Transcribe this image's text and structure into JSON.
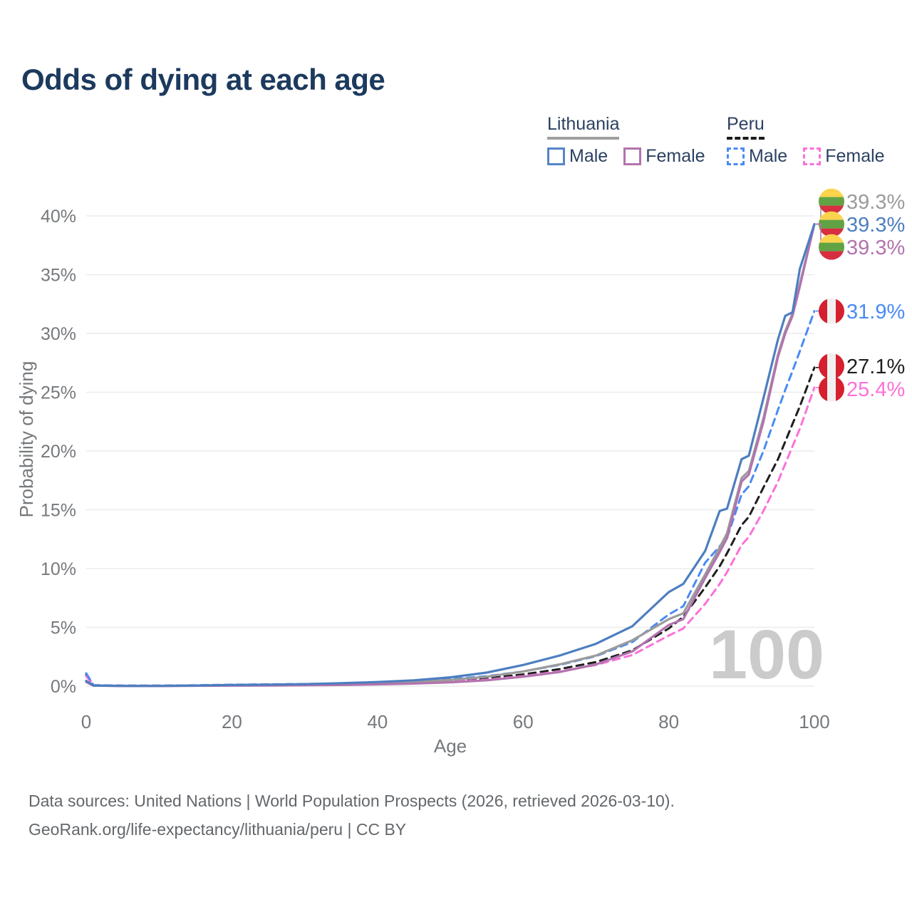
{
  "header": {
    "title": "Odds of dying at each age"
  },
  "legend": {
    "lithuania": {
      "label": "Lithuania",
      "underline_color": "#9e9e9e",
      "male": "Male",
      "female": "Female",
      "male_color": "#5585c7",
      "female_color": "#b273ae"
    },
    "peru": {
      "label": "Peru",
      "underline_color": "#1a1a1a",
      "male": "Male",
      "female": "Female",
      "male_color": "#4a8af4",
      "female_color": "#fb71d8"
    }
  },
  "chart_data": {
    "type": "line",
    "title": "Odds of dying at each age",
    "xlabel": "Age",
    "ylabel": "Probability of dying",
    "xlim": [
      0,
      100
    ],
    "ylim": [
      0,
      42
    ],
    "xticks": [
      0,
      20,
      40,
      60,
      80,
      100
    ],
    "xtick_labels": [
      "0",
      "20",
      "40",
      "60",
      "80",
      "100"
    ],
    "yticks": [
      0,
      5,
      10,
      15,
      20,
      25,
      30,
      35,
      40
    ],
    "ytick_labels": [
      "0%",
      "5%",
      "10%",
      "15%",
      "20%",
      "25%",
      "30%",
      "35%",
      "40%"
    ],
    "grid": "horizontal",
    "legend_position": "top-right",
    "watermark": "100",
    "flags": {
      "lithuania": [
        "#FCD34D",
        "#61A344",
        "#D62F3F"
      ],
      "peru": [
        "#D6202F",
        "#F0F0F0",
        "#D6202F"
      ]
    },
    "x": [
      0,
      1,
      5,
      10,
      15,
      20,
      25,
      30,
      35,
      40,
      45,
      50,
      55,
      60,
      65,
      70,
      75,
      80,
      82,
      85,
      87,
      88,
      90,
      91,
      93,
      95,
      96,
      97,
      98,
      100
    ],
    "series": [
      {
        "id": "lithuania-total",
        "name": "Lithuania",
        "sex": "both",
        "color": "#9b9b9b",
        "dash": "solid",
        "flag": "lithuania",
        "end_label": "39.3%",
        "label_color": "#9b9b9b",
        "values": [
          0.4,
          0.045,
          0.02,
          0.02,
          0.04,
          0.07,
          0.09,
          0.12,
          0.17,
          0.25,
          0.35,
          0.52,
          0.8,
          1.25,
          1.85,
          2.6,
          3.9,
          5.7,
          6.2,
          9.5,
          11.8,
          13.0,
          17.7,
          18.3,
          22.8,
          28.2,
          30.2,
          31.7,
          34.2,
          39.3
        ]
      },
      {
        "id": "lithuania-male",
        "name": "Lithuania male",
        "sex": "male",
        "color": "#4d7ec0",
        "dash": "solid",
        "flag": "lithuania",
        "end_label": "39.3%",
        "label_color": "#4d7ec0",
        "values": [
          0.45,
          0.05,
          0.02,
          0.02,
          0.05,
          0.1,
          0.13,
          0.17,
          0.25,
          0.35,
          0.5,
          0.75,
          1.15,
          1.8,
          2.6,
          3.6,
          5.1,
          8.0,
          8.7,
          11.5,
          14.9,
          15.1,
          19.3,
          19.6,
          24.5,
          29.5,
          31.5,
          31.8,
          35.5,
          39.3
        ]
      },
      {
        "id": "lithuania-female",
        "name": "Lithuania female",
        "sex": "female",
        "color": "#b273ae",
        "dash": "solid",
        "flag": "lithuania",
        "end_label": "39.3%",
        "label_color": "#b273ae",
        "values": [
          0.35,
          0.04,
          0.015,
          0.015,
          0.03,
          0.04,
          0.05,
          0.07,
          0.1,
          0.15,
          0.22,
          0.32,
          0.5,
          0.8,
          1.2,
          1.85,
          2.95,
          5.2,
          5.7,
          9.2,
          11.4,
          12.6,
          17.4,
          18.0,
          22.5,
          28.0,
          30.0,
          31.5,
          34.0,
          39.3
        ]
      },
      {
        "id": "peru-male",
        "name": "Peru male",
        "sex": "male",
        "color": "#4a8af4",
        "dash": "dashed",
        "flag": "peru",
        "end_label": "31.9%",
        "label_color": "#4a8af4",
        "values": [
          1.1,
          0.08,
          0.04,
          0.04,
          0.07,
          0.12,
          0.15,
          0.18,
          0.23,
          0.3,
          0.42,
          0.6,
          0.85,
          1.25,
          1.8,
          2.55,
          3.75,
          6.1,
          6.8,
          10.5,
          11.9,
          12.6,
          16.3,
          17.0,
          20.0,
          23.5,
          25.2,
          26.8,
          28.5,
          31.9
        ]
      },
      {
        "id": "peru-total",
        "name": "Peru",
        "sex": "both",
        "color": "#1f1f1f",
        "dash": "dashed",
        "flag": "peru",
        "end_label": "27.1%",
        "label_color": "#1f1f1f",
        "values": [
          0.95,
          0.07,
          0.035,
          0.035,
          0.06,
          0.1,
          0.12,
          0.14,
          0.18,
          0.24,
          0.33,
          0.47,
          0.67,
          1.0,
          1.45,
          2.05,
          3.05,
          4.9,
          5.9,
          8.4,
          10.2,
          11.3,
          13.7,
          14.4,
          16.9,
          19.3,
          20.8,
          22.3,
          23.8,
          27.1
        ]
      },
      {
        "id": "peru-female",
        "name": "Peru female",
        "sex": "female",
        "color": "#fb71d8",
        "dash": "dashed",
        "flag": "peru",
        "end_label": "25.4%",
        "label_color": "#fb71d8",
        "values": [
          0.85,
          0.06,
          0.03,
          0.03,
          0.05,
          0.07,
          0.09,
          0.11,
          0.14,
          0.19,
          0.27,
          0.38,
          0.55,
          0.85,
          1.25,
          1.8,
          2.65,
          4.3,
          4.9,
          7.0,
          8.7,
          9.7,
          12.0,
          12.7,
          14.9,
          17.4,
          18.9,
          20.4,
          21.9,
          25.4
        ]
      }
    ]
  },
  "footer": {
    "line1": "Data sources: United Nations | World Population Prospects (2026, retrieved 2026-03-10).",
    "line2": "GeoRank.org/life-expectancy/lithuania/peru | CC BY"
  }
}
